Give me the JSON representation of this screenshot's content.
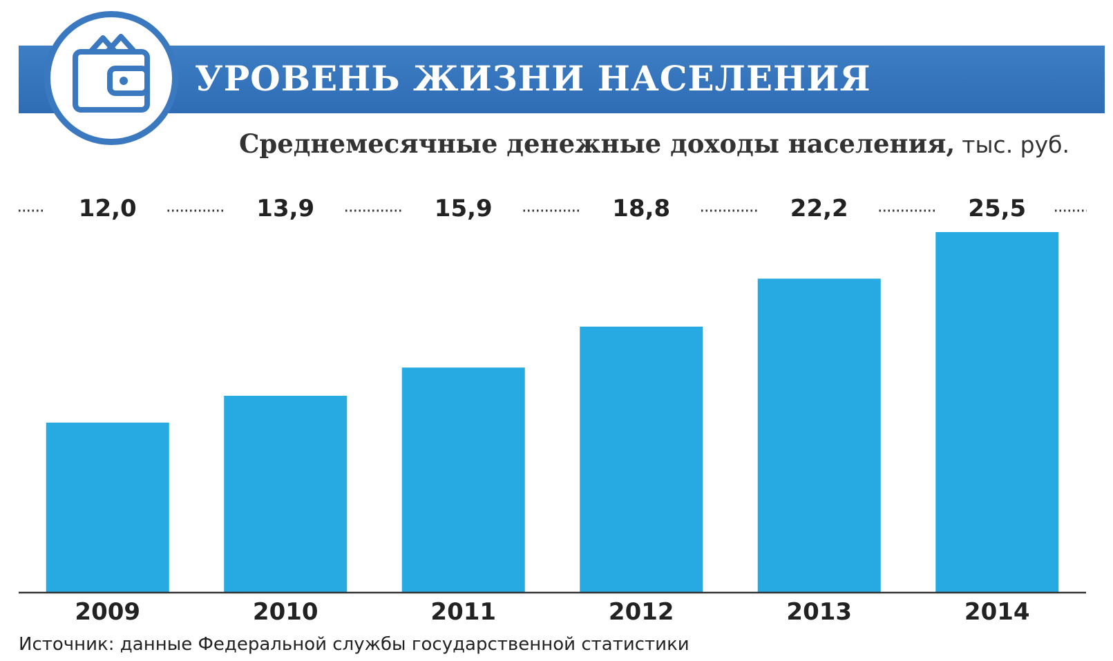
{
  "header": {
    "title": "УРОВЕНЬ ЖИЗНИ НАСЕЛЕНИЯ",
    "icon": "wallet-icon",
    "accent_color": "#3a78bf"
  },
  "subtitle": {
    "main": "Среднемесячные денежные доходы населения,",
    "unit": "тыс. руб."
  },
  "chart_data": {
    "type": "bar",
    "categories": [
      "2009",
      "2010",
      "2011",
      "2012",
      "2013",
      "2014"
    ],
    "values": [
      12.0,
      13.9,
      15.9,
      18.8,
      22.2,
      25.5
    ],
    "value_labels": [
      "12,0",
      "13,9",
      "15,9",
      "18,8",
      "22,2",
      "25,5"
    ],
    "ylim": [
      0,
      25.5
    ],
    "grid": false,
    "bar_color": "#27aae2"
  },
  "source": "Источник: данные Федеральной службы государственной статистики"
}
